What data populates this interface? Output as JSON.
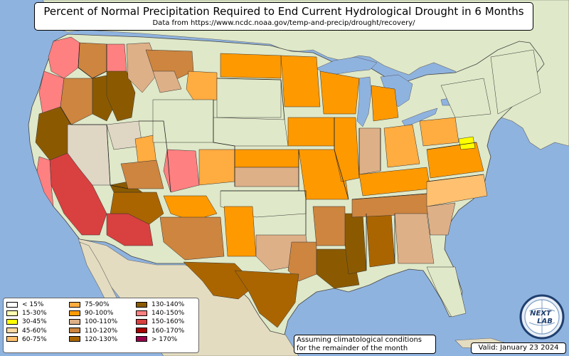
{
  "title": "Percent of Normal Precipitation Required to End Current Hydrological Drought in 6 Months",
  "subtitle": "Data from https://www.ncdc.noaa.gov/temp-and-precip/drought/recovery/",
  "assumption": {
    "line1": "Assuming climatological conditions",
    "line2": "for the remainder of the month"
  },
  "valid": "Valid: January 23 2024",
  "logo": {
    "text_top": "NEXT",
    "text_bottom": "LAB",
    "name": "nexlab-logo"
  },
  "legend": {
    "items": [
      {
        "label": "< 15%",
        "color": "#ffffff"
      },
      {
        "label": "15-30%",
        "color": "#ffffb0"
      },
      {
        "label": "30-45%",
        "color": "#ffff00"
      },
      {
        "label": "45-60%",
        "color": "#ffd9a0"
      },
      {
        "label": "60-75%",
        "color": "#ffc070"
      },
      {
        "label": "75-90%",
        "color": "#ffac40"
      },
      {
        "label": "90-100%",
        "color": "#ff9900"
      },
      {
        "label": "100-110%",
        "color": "#deb088"
      },
      {
        "label": "110-120%",
        "color": "#cd853f"
      },
      {
        "label": "120-130%",
        "color": "#aa6500"
      },
      {
        "label": "130-140%",
        "color": "#8b5a00"
      },
      {
        "label": "140-150%",
        "color": "#ff8080"
      },
      {
        "label": "150-160%",
        "color": "#d94040"
      },
      {
        "label": "160-170%",
        "color": "#aa0000"
      },
      {
        "label": "> 170%",
        "color": "#99004c"
      }
    ]
  },
  "colors": {
    "ocean": "#8fb3df",
    "land": "#dfe8c8",
    "land_dark": "#c8d8a8",
    "lakes": "#8fb3df"
  }
}
